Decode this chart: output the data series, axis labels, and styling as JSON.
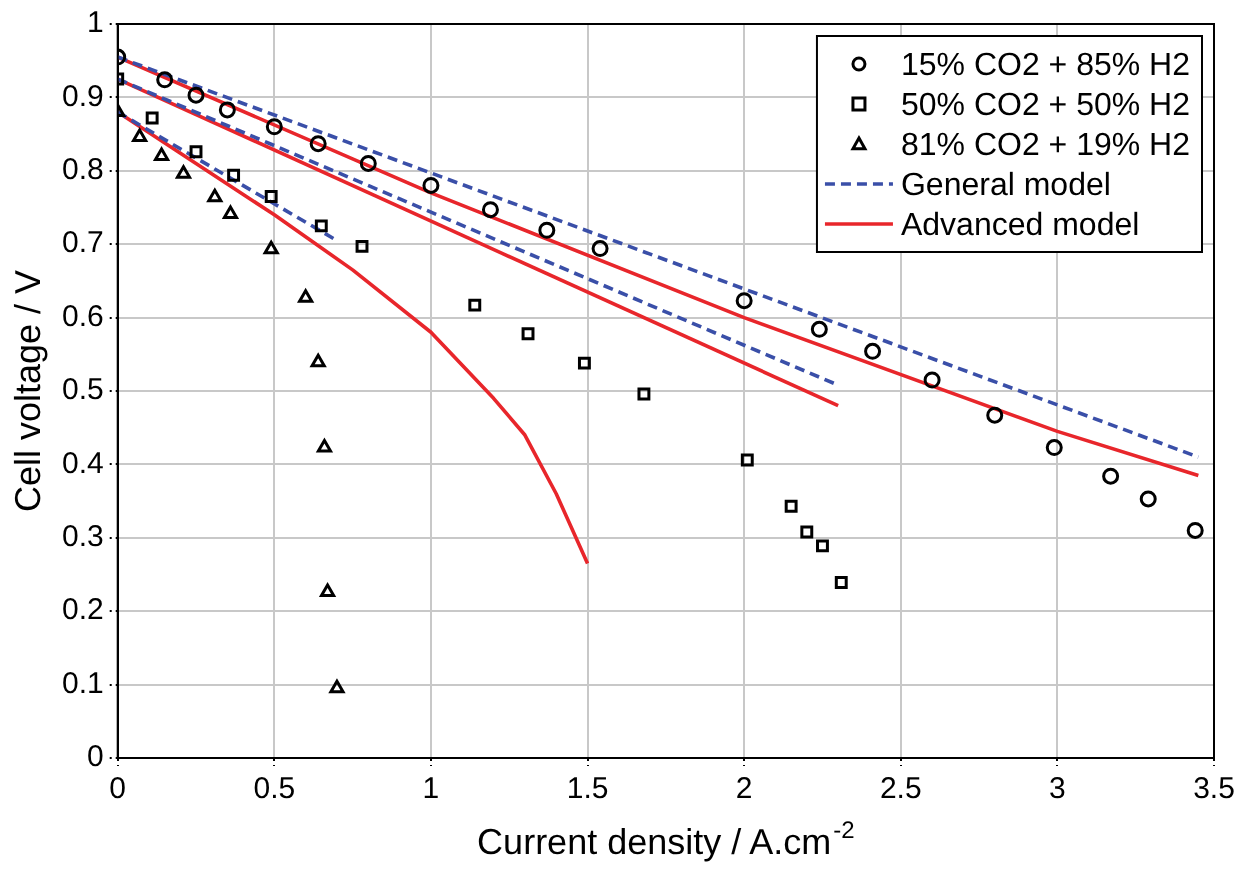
{
  "chart_data": {
    "type": "scatter",
    "xlabel": "Current density / A.cm$^{-2}$",
    "ylabel": "Cell voltage / V",
    "xlim": [
      0,
      3.5
    ],
    "xticks": [
      0,
      0.5,
      1,
      1.5,
      2,
      2.5,
      3,
      3.5
    ],
    "ylim": [
      0,
      1
    ],
    "yticks": [
      0,
      0.1,
      0.2,
      0.3,
      0.4,
      0.5,
      0.6,
      0.7,
      0.8,
      0.9,
      1
    ],
    "grid": true,
    "legend": "top right",
    "series": [
      {
        "name": "15% CO2 + 85% H2",
        "type": "scatter",
        "marker": "circle",
        "color": "#000000",
        "x": [
          0,
          0.15,
          0.25,
          0.35,
          0.5,
          0.64,
          0.8,
          1.0,
          1.19,
          1.37,
          1.54,
          2.0,
          2.24,
          2.41,
          2.6,
          2.8,
          2.99,
          3.17,
          3.29,
          3.44
        ],
        "values": [
          0.955,
          0.924,
          0.903,
          0.883,
          0.86,
          0.837,
          0.81,
          0.78,
          0.747,
          0.719,
          0.694,
          0.623,
          0.584,
          0.554,
          0.515,
          0.467,
          0.423,
          0.384,
          0.353,
          0.31
        ]
      },
      {
        "name": "50% CO2 + 50% H2",
        "type": "scatter",
        "marker": "square",
        "color": "#000000",
        "x": [
          0,
          0.11,
          0.25,
          0.37,
          0.49,
          0.65,
          0.78,
          1.14,
          1.31,
          1.49,
          1.68,
          2.01,
          2.15,
          2.2,
          2.25,
          2.31
        ],
        "values": [
          0.925,
          0.872,
          0.826,
          0.794,
          0.765,
          0.725,
          0.697,
          0.617,
          0.578,
          0.538,
          0.496,
          0.406,
          0.343,
          0.308,
          0.289,
          0.239
        ]
      },
      {
        "name": "81% CO2 + 19% H2",
        "type": "scatter",
        "marker": "triangle",
        "color": "#000000",
        "x": [
          0,
          0.07,
          0.14,
          0.21,
          0.31,
          0.36,
          0.49,
          0.6,
          0.64,
          0.66,
          0.67,
          0.7
        ],
        "values": [
          0.88,
          0.846,
          0.82,
          0.796,
          0.764,
          0.741,
          0.693,
          0.627,
          0.539,
          0.423,
          0.226,
          0.095
        ]
      },
      {
        "name": "General model",
        "type": "line",
        "marker": "none",
        "line_style": "dashed",
        "color": "#3a4fa8",
        "x": [
          0,
          3.45
        ],
        "values": [
          0.955,
          0.41
        ]
      },
      {
        "type": "line",
        "marker": "none",
        "line_style": "dashed",
        "color": "#3a4fa8",
        "x": [
          0,
          2.3
        ],
        "values": [
          0.925,
          0.508
        ]
      },
      {
        "type": "line",
        "marker": "none",
        "line_style": "dashed",
        "color": "#3a4fa8",
        "x": [
          0,
          0.7
        ],
        "values": [
          0.88,
          0.705
        ]
      },
      {
        "name": "Advanced model",
        "type": "line",
        "marker": "none",
        "line_style": "solid",
        "color": "#e8262b",
        "x": [
          0,
          1,
          2,
          3,
          3.45
        ],
        "values": [
          0.955,
          0.77,
          0.6,
          0.445,
          0.385
        ]
      },
      {
        "type": "line",
        "marker": "none",
        "line_style": "solid",
        "color": "#e8262b",
        "x": [
          0,
          2.3
        ],
        "values": [
          0.925,
          0.48
        ]
      },
      {
        "type": "line",
        "marker": "none",
        "line_style": "solid",
        "color": "#e8262b",
        "x": [
          0,
          0.25,
          0.5,
          0.75,
          1.0,
          1.2,
          1.3,
          1.4,
          1.5
        ],
        "values": [
          0.88,
          0.81,
          0.74,
          0.665,
          0.58,
          0.49,
          0.44,
          0.36,
          0.265
        ]
      }
    ]
  }
}
